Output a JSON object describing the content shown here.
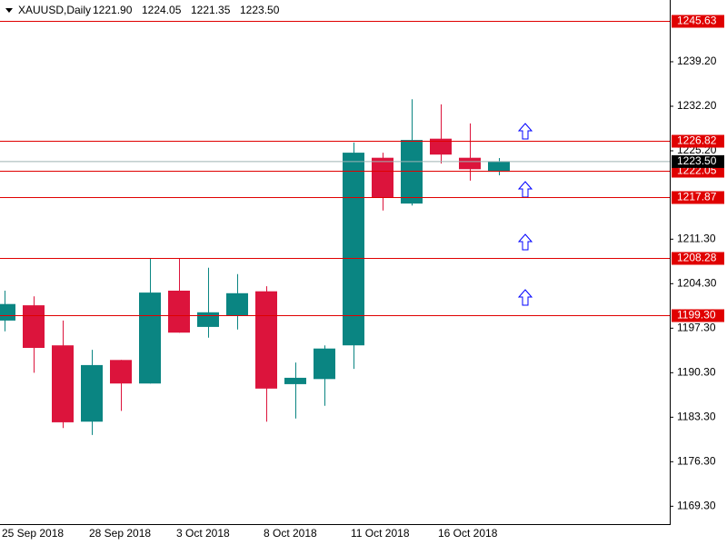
{
  "header": {
    "symbol": "XAUUSD,Daily",
    "ohlc": [
      "1221.90",
      "1224.05",
      "1221.35",
      "1223.50"
    ]
  },
  "chart_data": {
    "type": "candlestick",
    "categories": [
      "25 Sep 2018",
      null,
      null,
      "28 Sep 2018",
      null,
      null,
      "3 Oct 2018",
      null,
      null,
      "8 Oct 2018",
      null,
      null,
      "11 Oct 2018",
      null,
      null,
      "16 Oct 2018",
      null,
      null
    ],
    "open": [
      1198.5,
      1200.9,
      1194.6,
      1182.6,
      1192.3,
      1188.6,
      1203.2,
      1197.5,
      1199.3,
      1203.1,
      1188.5,
      1189.3,
      1194.6,
      1224.1,
      1216.9,
      1227.1,
      1224.1,
      1221.9
    ],
    "high": [
      1203.2,
      1202.3,
      1198.5,
      1193.9,
      1192.3,
      1208.2,
      1208.2,
      1206.8,
      1205.8,
      1203.9,
      1191.9,
      1194.6,
      1226.5,
      1224.9,
      1233.3,
      1232.5,
      1229.5,
      1224.05
    ],
    "low": [
      1196.8,
      1190.3,
      1181.6,
      1180.5,
      1184.3,
      1188.6,
      1196.6,
      1195.8,
      1197.1,
      1182.6,
      1183.1,
      1185.1,
      1190.9,
      1215.8,
      1216.6,
      1223.2,
      1220.5,
      1221.35
    ],
    "close": [
      1201.1,
      1194.2,
      1182.5,
      1191.5,
      1188.6,
      1202.9,
      1196.6,
      1199.8,
      1202.8,
      1187.8,
      1189.5,
      1194.1,
      1224.9,
      1217.8,
      1226.9,
      1224.6,
      1222.3,
      1223.5
    ],
    "up_color": "#0a8582",
    "down_color": "#dc143c",
    "ylim": [
      1166.49,
      1248.91
    ],
    "yticks": [
      {
        "value": 1239.2,
        "label": "1239.20"
      },
      {
        "value": 1232.2,
        "label": "1232.20"
      },
      {
        "value": 1225.2,
        "label": "1225.20"
      },
      {
        "value": 1211.3,
        "label": "1211.30"
      },
      {
        "value": 1204.3,
        "label": "1204.30"
      },
      {
        "value": 1197.3,
        "label": "1197.30"
      },
      {
        "value": 1190.3,
        "label": "1190.30"
      },
      {
        "value": 1183.3,
        "label": "1183.30"
      },
      {
        "value": 1176.3,
        "label": "1176.30"
      },
      {
        "value": 1169.3,
        "label": "1169.30"
      }
    ],
    "levels": [
      1245.63,
      1226.82,
      1222.05,
      1217.87,
      1208.28,
      {
        "value": 1199.3,
        "label": "1199.30"
      }
    ],
    "level_color": "#e00000",
    "current_price": {
      "value": 1223.5,
      "label": "1223.50"
    },
    "current_color": "#9fb5b5"
  }
}
